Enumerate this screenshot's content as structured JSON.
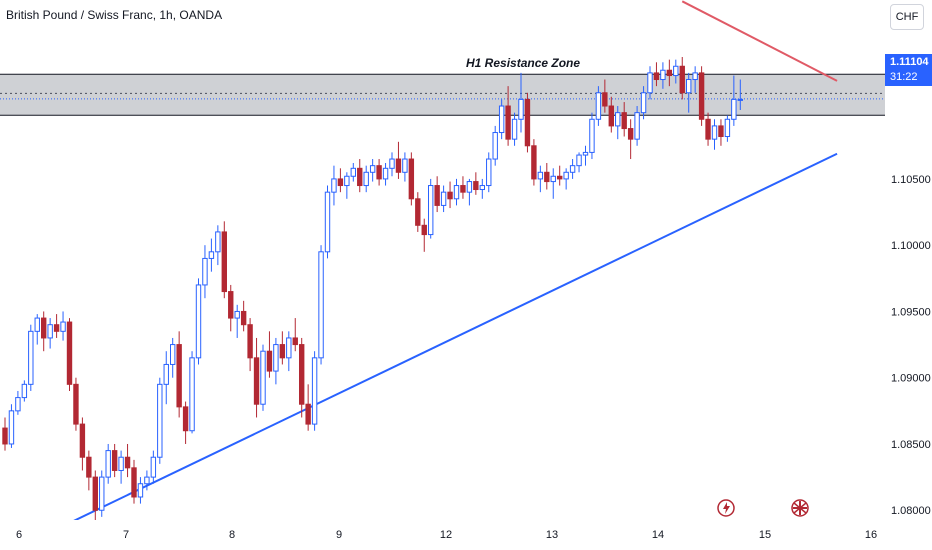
{
  "header": {
    "title": "British Pound / Swiss Franc, 1h, OANDA",
    "currency_button": "CHF"
  },
  "price_tag": {
    "price": "1.11104",
    "countdown": "31:22"
  },
  "annotation": {
    "zone_label": "H1 Resistance Zone"
  },
  "colors": {
    "up": "#2962ff",
    "down": "#b22833",
    "trendline_up": "#2962ff",
    "trendline_down": "#e05a66",
    "zone_fill": "#c7c9ce"
  },
  "icons": {
    "event_1": "lightning-icon",
    "event_2": "uk-flag-icon"
  },
  "chart_data": {
    "type": "candlestick",
    "instrument": "GBP/CHF",
    "timeframe": "1h",
    "ylim": [
      1.077,
      1.1185
    ],
    "y_ticks": [
      "1.10500",
      "1.10000",
      "1.09500",
      "1.09000",
      "1.08500",
      "1.08000"
    ],
    "y_tick_values": [
      1.105,
      1.1,
      1.095,
      1.09,
      1.085,
      1.08
    ],
    "x_ticks": [
      "6",
      "7",
      "8",
      "9",
      "12",
      "13",
      "14",
      "15",
      "16"
    ],
    "resistance_zone": {
      "from": 1.1098,
      "to": 1.1129,
      "mid": 1.11145,
      "label": "H1 Resistance Zone"
    },
    "current_price": 1.11104,
    "support_trendline": {
      "from": [
        0,
        1.0767
      ],
      "to": [
        129,
        1.1069
      ]
    },
    "resistance_trendline": {
      "from": [
        105,
        1.1184
      ],
      "to": [
        129,
        1.1124
      ]
    },
    "candles": [
      [
        1.0862,
        1.087,
        1.0845,
        1.085
      ],
      [
        1.085,
        1.088,
        1.0847,
        1.0875
      ],
      [
        1.0875,
        1.089,
        1.0872,
        1.0885
      ],
      [
        1.0885,
        1.0898,
        1.0882,
        1.0895
      ],
      [
        1.0895,
        1.094,
        1.089,
        1.0935
      ],
      [
        1.0935,
        1.0948,
        1.0925,
        1.0945
      ],
      [
        1.0945,
        1.095,
        1.092,
        1.093
      ],
      [
        1.093,
        1.0945,
        1.0922,
        1.094
      ],
      [
        1.094,
        1.0948,
        1.093,
        1.0935
      ],
      [
        1.0935,
        1.095,
        1.0928,
        1.0942
      ],
      [
        1.0942,
        1.0945,
        1.089,
        1.0895
      ],
      [
        1.0895,
        1.09,
        1.086,
        1.0865
      ],
      [
        1.0865,
        1.087,
        1.083,
        1.084
      ],
      [
        1.084,
        1.0845,
        1.0815,
        1.0825
      ],
      [
        1.0825,
        1.083,
        1.079,
        1.08
      ],
      [
        1.08,
        1.083,
        1.0795,
        1.0825
      ],
      [
        1.0825,
        1.085,
        1.082,
        1.0845
      ],
      [
        1.0845,
        1.085,
        1.0825,
        1.083
      ],
      [
        1.083,
        1.0845,
        1.082,
        1.084
      ],
      [
        1.084,
        1.085,
        1.0825,
        1.0832
      ],
      [
        1.0832,
        1.0838,
        1.0805,
        1.081
      ],
      [
        1.081,
        1.0825,
        1.0805,
        1.082
      ],
      [
        1.082,
        1.083,
        1.0815,
        1.0825
      ],
      [
        1.0825,
        1.0845,
        1.082,
        1.084
      ],
      [
        1.084,
        1.09,
        1.0835,
        1.0895
      ],
      [
        1.0895,
        1.092,
        1.088,
        1.091
      ],
      [
        1.091,
        1.093,
        1.09,
        1.0925
      ],
      [
        1.0925,
        1.0935,
        1.087,
        1.0878
      ],
      [
        1.0878,
        1.0882,
        1.085,
        1.086
      ],
      [
        1.086,
        1.092,
        1.0858,
        1.0915
      ],
      [
        1.0915,
        1.0975,
        1.091,
        1.097
      ],
      [
        1.097,
        1.1,
        1.096,
        1.099
      ],
      [
        1.099,
        1.1005,
        1.098,
        1.0995
      ],
      [
        1.0995,
        1.1015,
        1.0985,
        1.101
      ],
      [
        1.101,
        1.1018,
        1.096,
        1.0965
      ],
      [
        1.0965,
        1.097,
        1.0935,
        1.0945
      ],
      [
        1.0945,
        1.0955,
        1.093,
        1.095
      ],
      [
        1.095,
        1.0958,
        1.0935,
        1.094
      ],
      [
        1.094,
        1.0945,
        1.0905,
        1.0915
      ],
      [
        1.0915,
        1.093,
        1.087,
        1.088
      ],
      [
        1.088,
        1.0925,
        1.0875,
        1.092
      ],
      [
        1.092,
        1.0935,
        1.09,
        1.0905
      ],
      [
        1.0905,
        1.093,
        1.0895,
        1.0925
      ],
      [
        1.0925,
        1.0935,
        1.091,
        1.0915
      ],
      [
        1.0915,
        1.0935,
        1.0905,
        1.093
      ],
      [
        1.093,
        1.0945,
        1.092,
        1.0925
      ],
      [
        1.0925,
        1.093,
        1.087,
        1.088
      ],
      [
        1.088,
        1.0895,
        1.086,
        1.0865
      ],
      [
        1.0865,
        1.092,
        1.086,
        1.0915
      ],
      [
        1.0915,
        1.1,
        1.091,
        1.0995
      ],
      [
        1.0995,
        1.1045,
        1.099,
        1.104
      ],
      [
        1.104,
        1.106,
        1.103,
        1.105
      ],
      [
        1.105,
        1.1058,
        1.104,
        1.1045
      ],
      [
        1.1045,
        1.1055,
        1.1035,
        1.1052
      ],
      [
        1.1052,
        1.1062,
        1.1048,
        1.1058
      ],
      [
        1.1058,
        1.1065,
        1.104,
        1.1045
      ],
      [
        1.1045,
        1.106,
        1.104,
        1.1055
      ],
      [
        1.1055,
        1.1065,
        1.1048,
        1.106
      ],
      [
        1.106,
        1.1065,
        1.1045,
        1.105
      ],
      [
        1.105,
        1.1062,
        1.1045,
        1.1058
      ],
      [
        1.1058,
        1.107,
        1.1052,
        1.1065
      ],
      [
        1.1065,
        1.1078,
        1.105,
        1.1055
      ],
      [
        1.1055,
        1.107,
        1.1048,
        1.1065
      ],
      [
        1.1065,
        1.107,
        1.103,
        1.1035
      ],
      [
        1.1035,
        1.104,
        1.101,
        1.1015
      ],
      [
        1.1015,
        1.102,
        1.0995,
        1.1008
      ],
      [
        1.1008,
        1.105,
        1.1005,
        1.1045
      ],
      [
        1.1045,
        1.1052,
        1.1025,
        1.103
      ],
      [
        1.103,
        1.1045,
        1.1025,
        1.104
      ],
      [
        1.104,
        1.1048,
        1.1028,
        1.1035
      ],
      [
        1.1035,
        1.105,
        1.103,
        1.1045
      ],
      [
        1.1045,
        1.1052,
        1.1035,
        1.104
      ],
      [
        1.104,
        1.105,
        1.103,
        1.1048
      ],
      [
        1.1048,
        1.1055,
        1.1038,
        1.1042
      ],
      [
        1.1042,
        1.105,
        1.1035,
        1.1045
      ],
      [
        1.1045,
        1.107,
        1.104,
        1.1065
      ],
      [
        1.1065,
        1.109,
        1.106,
        1.1085
      ],
      [
        1.1085,
        1.111,
        1.108,
        1.1105
      ],
      [
        1.1105,
        1.112,
        1.1075,
        1.108
      ],
      [
        1.108,
        1.11,
        1.1075,
        1.1095
      ],
      [
        1.1095,
        1.113,
        1.1085,
        1.111
      ],
      [
        1.111,
        1.1115,
        1.107,
        1.1075
      ],
      [
        1.1075,
        1.108,
        1.1045,
        1.105
      ],
      [
        1.105,
        1.106,
        1.104,
        1.1055
      ],
      [
        1.1055,
        1.1062,
        1.1042,
        1.1048
      ],
      [
        1.1048,
        1.1058,
        1.1035,
        1.1052
      ],
      [
        1.1052,
        1.106,
        1.1045,
        1.105
      ],
      [
        1.105,
        1.1058,
        1.1042,
        1.1055
      ],
      [
        1.1055,
        1.1065,
        1.105,
        1.106
      ],
      [
        1.106,
        1.107,
        1.1055,
        1.1068
      ],
      [
        1.1068,
        1.1075,
        1.106,
        1.107
      ],
      [
        1.107,
        1.11,
        1.1065,
        1.1095
      ],
      [
        1.1095,
        1.112,
        1.109,
        1.1115
      ],
      [
        1.1115,
        1.1125,
        1.11,
        1.1105
      ],
      [
        1.1105,
        1.1112,
        1.1085,
        1.109
      ],
      [
        1.109,
        1.1105,
        1.108,
        1.11
      ],
      [
        1.11,
        1.1108,
        1.1082,
        1.1088
      ],
      [
        1.1088,
        1.1095,
        1.1065,
        1.108
      ],
      [
        1.108,
        1.1105,
        1.1075,
        1.11
      ],
      [
        1.11,
        1.112,
        1.1095,
        1.1115
      ],
      [
        1.1115,
        1.1135,
        1.111,
        1.113
      ],
      [
        1.113,
        1.1138,
        1.112,
        1.1125
      ],
      [
        1.1125,
        1.1138,
        1.1118,
        1.1132
      ],
      [
        1.1132,
        1.114,
        1.112,
        1.1128
      ],
      [
        1.1128,
        1.114,
        1.1122,
        1.1135
      ],
      [
        1.1135,
        1.1142,
        1.111,
        1.1115
      ],
      [
        1.1115,
        1.113,
        1.11,
        1.1125
      ],
      [
        1.1125,
        1.1135,
        1.1115,
        1.113
      ],
      [
        1.113,
        1.1135,
        1.109,
        1.1095
      ],
      [
        1.1095,
        1.11,
        1.1075,
        1.108
      ],
      [
        1.108,
        1.1095,
        1.1072,
        1.109
      ],
      [
        1.109,
        1.1095,
        1.1075,
        1.1082
      ],
      [
        1.1082,
        1.1098,
        1.1078,
        1.1095
      ],
      [
        1.1095,
        1.1128,
        1.109,
        1.111
      ],
      [
        1.111,
        1.1125,
        1.1102,
        1.111
      ]
    ]
  }
}
